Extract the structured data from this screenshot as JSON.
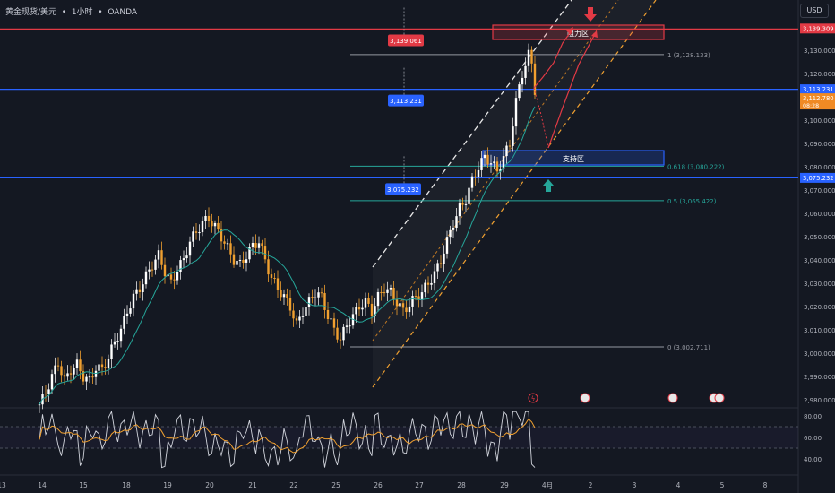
{
  "header": {
    "symbol": "黄金现货/美元",
    "sep": "•",
    "interval": "1小时",
    "source": "OANDA"
  },
  "currency": "USD",
  "chart_data": {
    "type": "candlestick",
    "xlabels": [
      "13",
      "14",
      "15",
      "18",
      "19",
      "20",
      "21",
      "22",
      "25",
      "26",
      "27",
      "28",
      "29",
      "4月",
      "2",
      "3",
      "4",
      "5",
      "8"
    ],
    "ylim": [
      2973,
      3144
    ],
    "yticks": [
      "3,130.000",
      "3,120.000",
      "3,110.000",
      "3,100.000",
      "3,090.000",
      "3,080.000",
      "3,070.000",
      "3,060.000",
      "3,050.000",
      "3,040.000",
      "3,030.000",
      "3,020.000",
      "3,010.000",
      "3,000.000",
      "2,990.000",
      "2,980.000"
    ],
    "ytick_values": [
      3130,
      3120,
      3110,
      3100,
      3090,
      3080,
      3070,
      3060,
      3050,
      3040,
      3030,
      3020,
      3010,
      3000,
      2990,
      2980
    ],
    "close_path": [
      [
        0,
        2978
      ],
      [
        2,
        2983
      ],
      [
        4,
        2990
      ],
      [
        6,
        2996
      ],
      [
        8,
        2988
      ],
      [
        10,
        2993
      ],
      [
        12,
        2995
      ],
      [
        14,
        2990
      ],
      [
        16,
        2988
      ],
      [
        18,
        2994
      ],
      [
        20,
        2993
      ],
      [
        22,
        2998
      ],
      [
        24,
        3005
      ],
      [
        26,
        3010
      ],
      [
        28,
        3018
      ],
      [
        30,
        3024
      ],
      [
        32,
        3028
      ],
      [
        34,
        3033
      ],
      [
        36,
        3038
      ],
      [
        38,
        3042
      ],
      [
        40,
        3035
      ],
      [
        42,
        3030
      ],
      [
        44,
        3036
      ],
      [
        46,
        3040
      ],
      [
        48,
        3048
      ],
      [
        50,
        3052
      ],
      [
        52,
        3056
      ],
      [
        54,
        3058
      ],
      [
        56,
        3054
      ],
      [
        58,
        3050
      ],
      [
        60,
        3045
      ],
      [
        62,
        3040
      ],
      [
        64,
        3038
      ],
      [
        66,
        3042
      ],
      [
        68,
        3046
      ],
      [
        70,
        3048
      ],
      [
        72,
        3040
      ],
      [
        74,
        3032
      ],
      [
        76,
        3028
      ],
      [
        78,
        3024
      ],
      [
        80,
        3020
      ],
      [
        82,
        3012
      ],
      [
        84,
        3018
      ],
      [
        86,
        3022
      ],
      [
        88,
        3026
      ],
      [
        90,
        3024
      ],
      [
        92,
        3016
      ],
      [
        94,
        3010
      ],
      [
        96,
        3006
      ],
      [
        98,
        3012
      ],
      [
        100,
        3016
      ],
      [
        102,
        3020
      ],
      [
        104,
        3022
      ],
      [
        106,
        3018
      ],
      [
        108,
        3024
      ],
      [
        110,
        3028
      ],
      [
        112,
        3026
      ],
      [
        114,
        3022
      ],
      [
        116,
        3018
      ],
      [
        118,
        3021
      ],
      [
        120,
        3024
      ],
      [
        122,
        3026
      ],
      [
        124,
        3030
      ],
      [
        126,
        3034
      ],
      [
        128,
        3040
      ],
      [
        130,
        3048
      ],
      [
        132,
        3056
      ],
      [
        134,
        3062
      ],
      [
        136,
        3066
      ],
      [
        138,
        3074
      ],
      [
        140,
        3080
      ],
      [
        142,
        3084
      ],
      [
        144,
        3082
      ],
      [
        146,
        3078
      ],
      [
        148,
        3084
      ],
      [
        150,
        3090
      ],
      [
        152,
        3108
      ],
      [
        154,
        3120
      ],
      [
        156,
        3128
      ],
      [
        157,
        3124
      ],
      [
        158,
        3113
      ]
    ],
    "hlines": [
      {
        "label": "3,139.061",
        "value": 3139.061,
        "color": "#e23a45"
      },
      {
        "label": "3,113.231",
        "value": 3113.231,
        "color": "#2962ff"
      },
      {
        "label": "3,075.232",
        "value": 3075.232,
        "color": "#2962ff"
      }
    ],
    "right_axis_tags": [
      {
        "label": "3,139.309",
        "value": 3139.309,
        "color": "#e23a45"
      },
      {
        "label": "3,113.231",
        "value": 3113.231,
        "color": "#2962ff"
      },
      {
        "label": "3,112.780",
        "sub": "08:28",
        "value": 3110.8,
        "color": "#f08a24"
      },
      {
        "label": "3,075.232",
        "value": 3075.232,
        "color": "#2962ff"
      }
    ],
    "fib": [
      {
        "label": "1 (3,128.133)",
        "value": 3128.133,
        "color": "#9598a1"
      },
      {
        "label": "0.618 (3,080.222)",
        "value": 3080.222,
        "color": "#26a69a"
      },
      {
        "label": "0.5 (3,065.422)",
        "value": 3065.422,
        "color": "#26a69a"
      },
      {
        "label": "0 (3,002.711)",
        "value": 3002.711,
        "color": "#9598a1"
      }
    ],
    "zones": {
      "resistance": "阻力区",
      "support": "支持区"
    },
    "rsi": {
      "ylabels": [
        "80.00",
        "60.00",
        "40.00"
      ],
      "yvalues": [
        80,
        60,
        40
      ]
    }
  }
}
